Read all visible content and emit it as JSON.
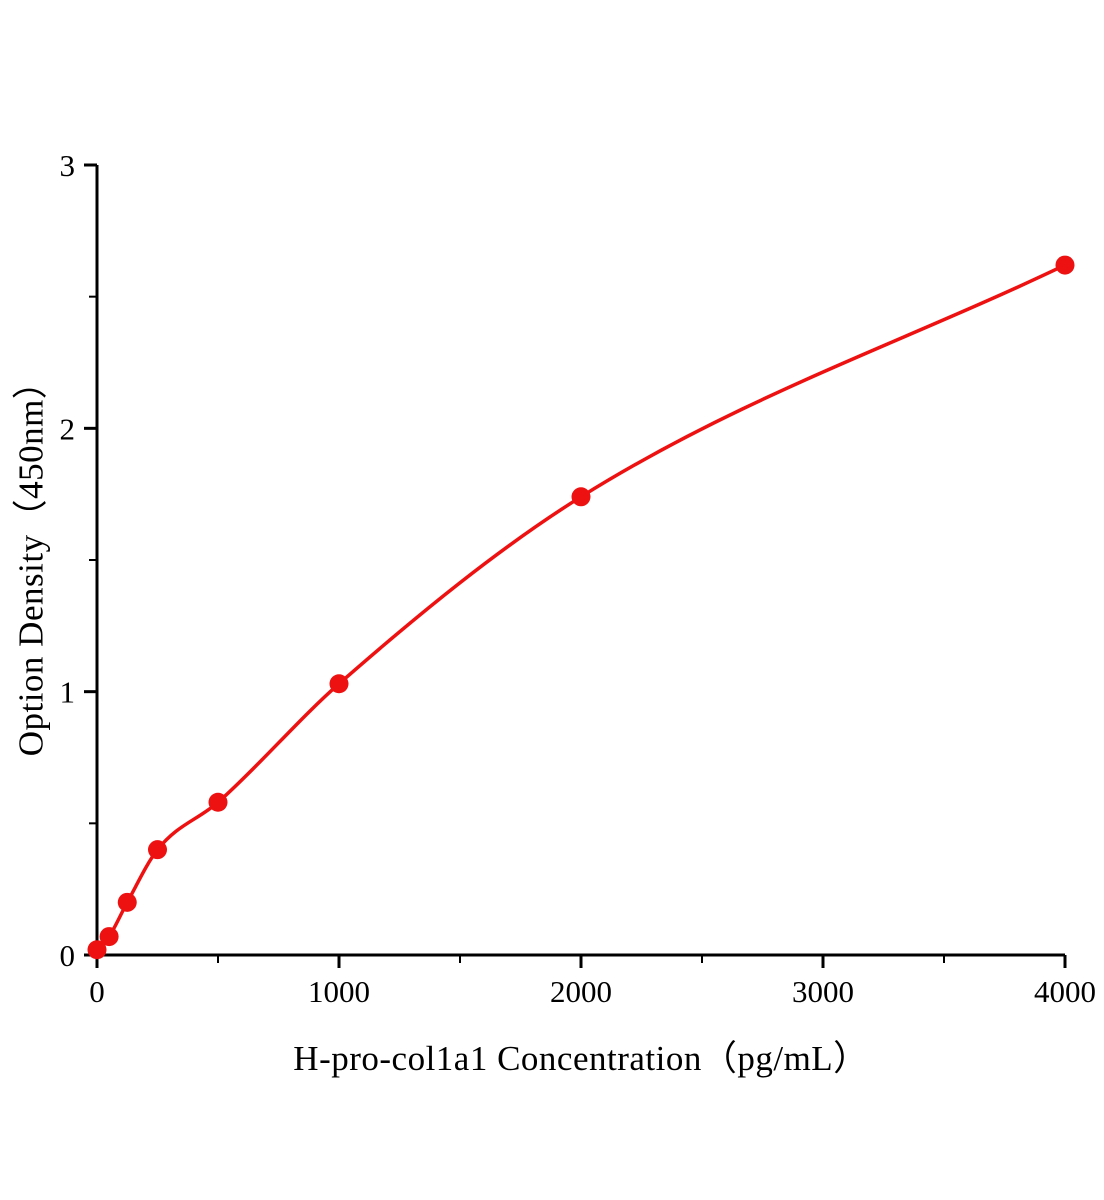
{
  "chart_data": {
    "type": "scatter",
    "title": "",
    "xlabel": "H-pro-col1a1 Concentration（pg/mL）",
    "ylabel": "Option Density（450nm）",
    "xlim": [
      0,
      4000
    ],
    "ylim": [
      0,
      3
    ],
    "x_ticks": [
      0,
      1000,
      2000,
      3000,
      4000
    ],
    "y_ticks": [
      0,
      1,
      2,
      3
    ],
    "x_minor_step": 500,
    "y_minor_step": 0.5,
    "grid": false,
    "legend_position": "none",
    "line_color": "#ee1111",
    "marker_color": "#ee1111",
    "axis_color": "#000000",
    "points": [
      {
        "x": 0,
        "y": 0.02
      },
      {
        "x": 50,
        "y": 0.07
      },
      {
        "x": 125,
        "y": 0.2
      },
      {
        "x": 250,
        "y": 0.4
      },
      {
        "x": 500,
        "y": 0.58
      },
      {
        "x": 1000,
        "y": 1.03
      },
      {
        "x": 2000,
        "y": 1.74
      },
      {
        "x": 4000,
        "y": 2.62
      }
    ]
  }
}
